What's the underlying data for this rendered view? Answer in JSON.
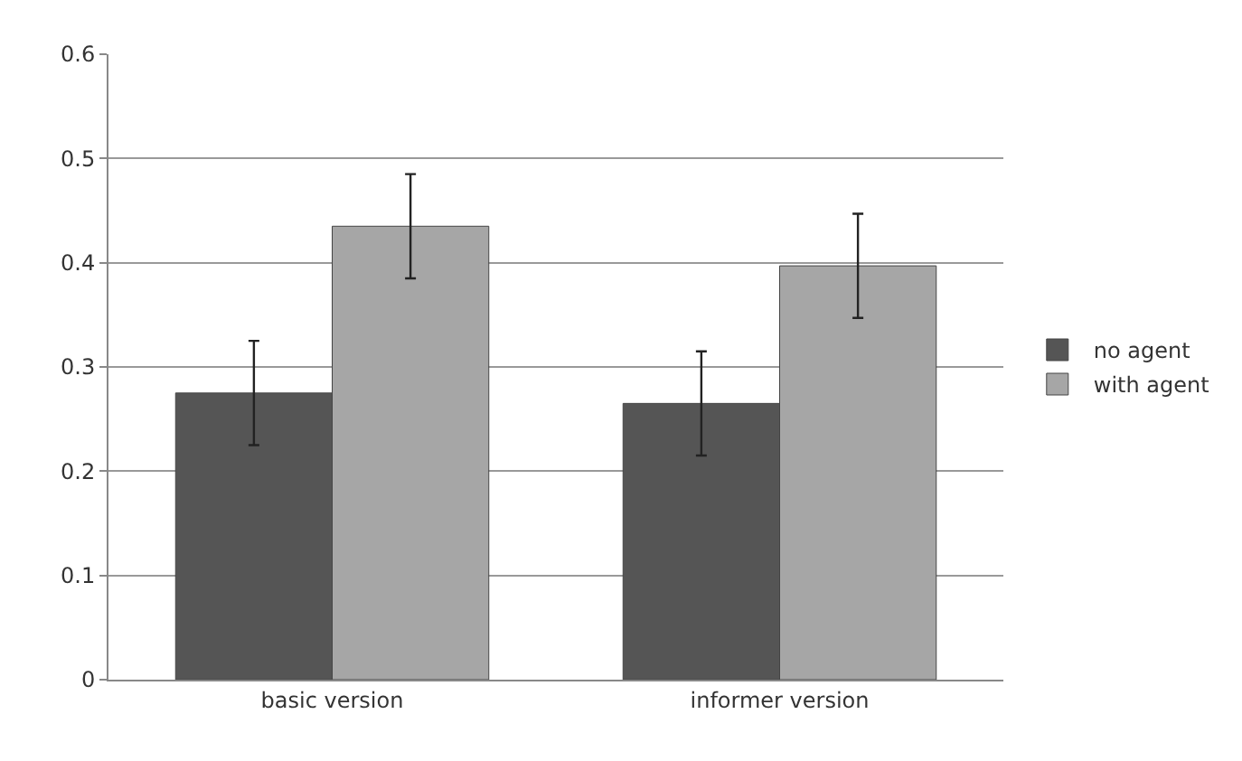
{
  "chart_data": {
    "type": "bar",
    "categories": [
      "basic version",
      "informer version"
    ],
    "series": [
      {
        "name": "no agent",
        "color": "#555555",
        "values": [
          0.275,
          0.265
        ],
        "errors": [
          0.05,
          0.05
        ]
      },
      {
        "name": "with agent",
        "color": "#a6a6a6",
        "values": [
          0.435,
          0.397
        ],
        "errors": [
          0.05,
          0.05
        ]
      }
    ],
    "ylim": [
      0,
      0.6
    ],
    "yticks": [
      0,
      0.1,
      0.2,
      0.3,
      0.4,
      0.5,
      0.6
    ],
    "grid": "y",
    "legend": "right"
  }
}
